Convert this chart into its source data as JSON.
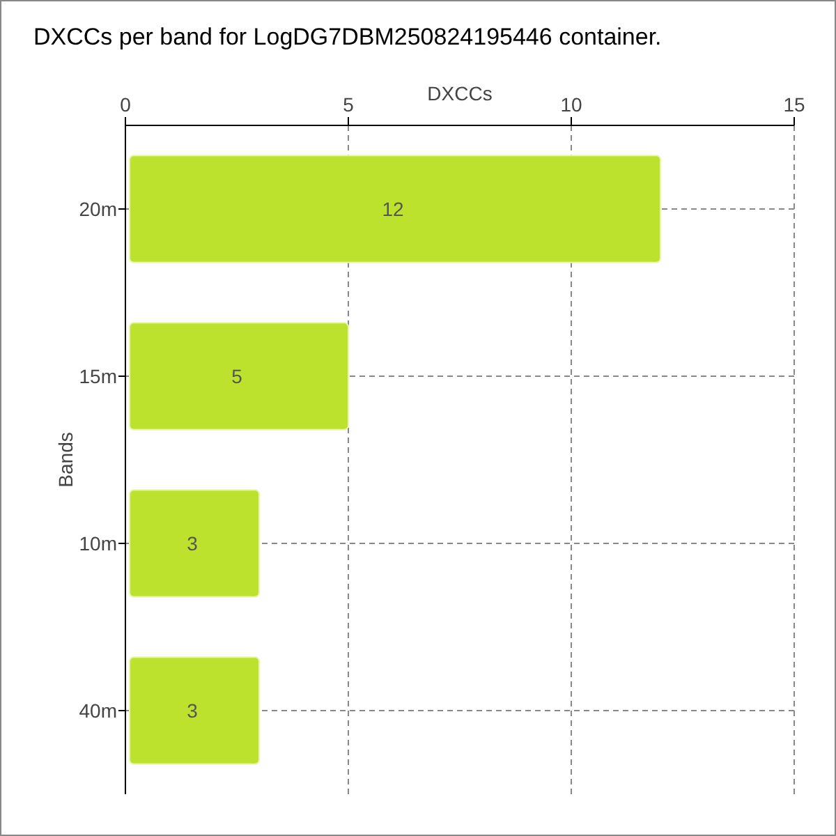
{
  "chart_data": {
    "type": "bar",
    "orientation": "horizontal",
    "title": "DXCCs per band for LogDG7DBM250824195446 container.",
    "xlabel": "DXCCs",
    "ylabel": "Bands",
    "categories": [
      "20m",
      "15m",
      "10m",
      "40m"
    ],
    "values": [
      12,
      5,
      3,
      3
    ],
    "color": "#bde22e",
    "xlim": [
      0,
      15
    ],
    "xticks": [
      0,
      5,
      10,
      15
    ],
    "grid": true,
    "data_labels": true
  }
}
